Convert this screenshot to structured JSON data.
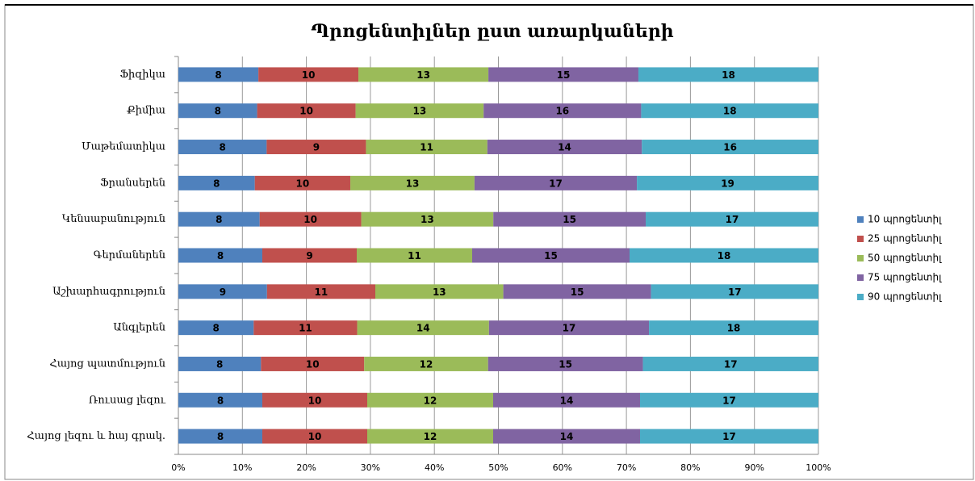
{
  "chart_data": {
    "type": "bar",
    "orientation": "horizontal",
    "stacking": "percent",
    "title": "Պրոցենտիլներ ըստ առարկաների",
    "categories": [
      "Ֆիզիկա",
      "Քիմիա",
      "Մաթեմատիկա",
      "Ֆրանսերեն",
      "Կենսաբանություն",
      "Գերմաներեն",
      "Աշխարհագրություն",
      "Անգլերեն",
      "Հայոց պատմություն",
      "Ռուսաց լեզու",
      "Հայոց լեզու և հայ գրակ."
    ],
    "series": [
      {
        "name": "10 պրոցենտիլ",
        "color": "#4f81bd",
        "values": [
          8,
          8,
          8,
          8,
          8,
          8,
          9,
          8,
          8,
          8,
          8
        ]
      },
      {
        "name": "25 պրոցենտիլ",
        "color": "#c0504d",
        "values": [
          10,
          10,
          9,
          10,
          10,
          9,
          11,
          11,
          10,
          10,
          10
        ]
      },
      {
        "name": "50 պրոցենտիլ",
        "color": "#9bbb59",
        "values": [
          13,
          13,
          11,
          13,
          13,
          11,
          13,
          14,
          12,
          12,
          12
        ]
      },
      {
        "name": "75 պրոցենտիլ",
        "color": "#8064a2",
        "values": [
          15,
          16,
          14,
          17,
          15,
          15,
          15,
          17,
          15,
          14,
          14
        ]
      },
      {
        "name": "90 պրոցենտիլ",
        "color": "#4bacc6",
        "values": [
          18,
          18,
          16,
          19,
          17,
          18,
          17,
          18,
          17,
          17,
          17
        ]
      }
    ],
    "xlim": [
      0,
      100
    ],
    "xticks": [
      {
        "value": 0,
        "label": "0%"
      },
      {
        "value": 10,
        "label": "10%"
      },
      {
        "value": 20,
        "label": "20%"
      },
      {
        "value": 30,
        "label": "30%"
      },
      {
        "value": 40,
        "label": "40%"
      },
      {
        "value": 50,
        "label": "50%"
      },
      {
        "value": 60,
        "label": "60%"
      },
      {
        "value": 70,
        "label": "70%"
      },
      {
        "value": 80,
        "label": "80%"
      },
      {
        "value": 90,
        "label": "90%"
      },
      {
        "value": 100,
        "label": "100%"
      }
    ],
    "grid": true,
    "legend": "right"
  }
}
